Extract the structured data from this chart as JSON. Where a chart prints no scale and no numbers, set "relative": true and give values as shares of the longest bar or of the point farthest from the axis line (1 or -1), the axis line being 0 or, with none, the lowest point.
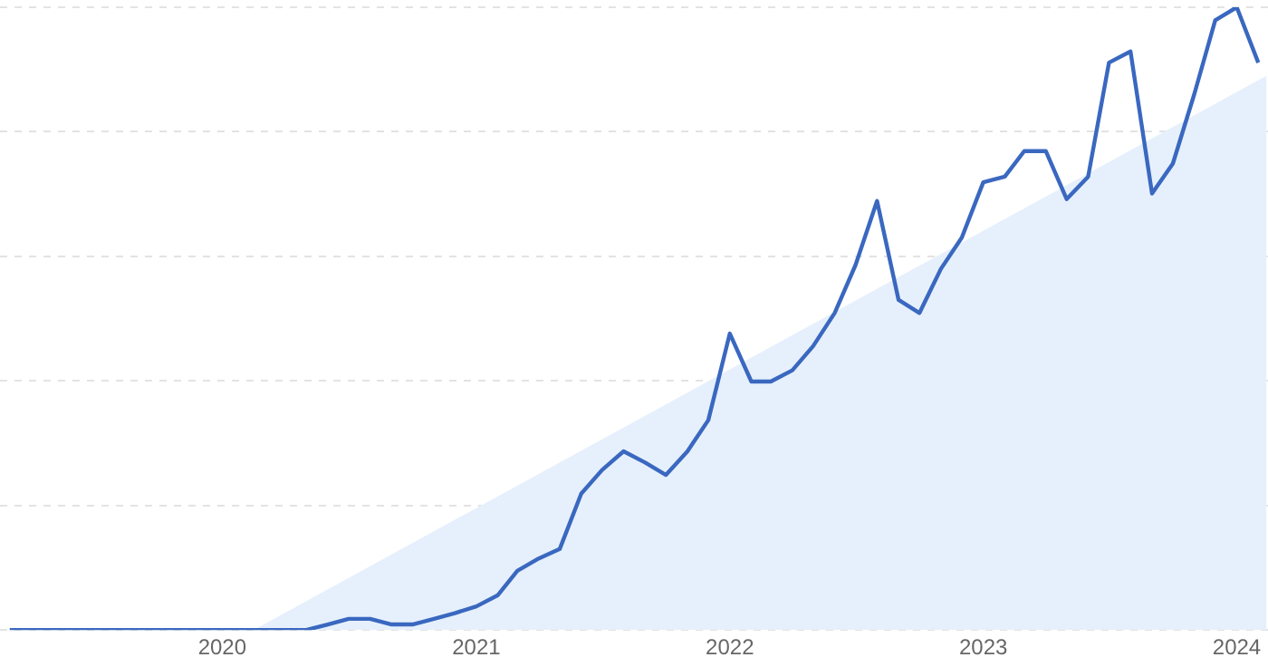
{
  "chart_data": {
    "type": "line",
    "relative": true,
    "grid": "y",
    "marker": "none",
    "line_style": "solid",
    "x": [
      "2019-03",
      "2019-04",
      "2019-05",
      "2019-06",
      "2019-07",
      "2019-08",
      "2019-09",
      "2019-10",
      "2019-11",
      "2019-12",
      "2020-01",
      "2020-02",
      "2020-03",
      "2020-04",
      "2020-05",
      "2020-06",
      "2020-07",
      "2020-08",
      "2020-09",
      "2020-10",
      "2020-11",
      "2020-12",
      "2021-01",
      "2021-02",
      "2021-03",
      "2021-04",
      "2021-05",
      "2021-06",
      "2021-07",
      "2021-08",
      "2021-09",
      "2021-10",
      "2021-11",
      "2021-12",
      "2022-01",
      "2022-02",
      "2022-03",
      "2022-04",
      "2022-05",
      "2022-06",
      "2022-07",
      "2022-08",
      "2022-09",
      "2022-10",
      "2022-11",
      "2022-12",
      "2023-01",
      "2023-02",
      "2023-03",
      "2023-04",
      "2023-05",
      "2023-06",
      "2023-07",
      "2023-08",
      "2023-09",
      "2023-10",
      "2023-11",
      "2023-12",
      "2024-01",
      "2024-02"
    ],
    "xlim": [
      "2019-02-15",
      "2024-02-15"
    ],
    "xticks": [
      "2020",
      "2021",
      "2022",
      "2023",
      "2024"
    ],
    "series": [
      {
        "type": "area",
        "color": "#e6f0fc",
        "x": [
          "2020-02-15",
          "2024-02-13"
        ],
        "values": [
          0,
          0.89
        ]
      },
      {
        "color": "#3a68c0",
        "values": [
          0,
          0,
          0,
          0,
          0,
          0,
          0,
          0,
          0,
          0,
          0,
          0,
          0,
          0,
          0,
          0.009,
          0.018,
          0.018,
          0.009,
          0.009,
          0.018,
          0.027,
          0.038,
          0.056,
          0.095,
          0.115,
          0.13,
          0.219,
          0.257,
          0.287,
          0.269,
          0.249,
          0.287,
          0.337,
          0.476,
          0.399,
          0.399,
          0.417,
          0.456,
          0.509,
          0.586,
          0.689,
          0.53,
          0.509,
          0.58,
          0.63,
          0.719,
          0.728,
          0.769,
          0.769,
          0.692,
          0.728,
          0.911,
          0.929,
          0.701,
          0.749,
          0.861,
          0.979,
          1,
          0.911
        ]
      }
    ]
  }
}
